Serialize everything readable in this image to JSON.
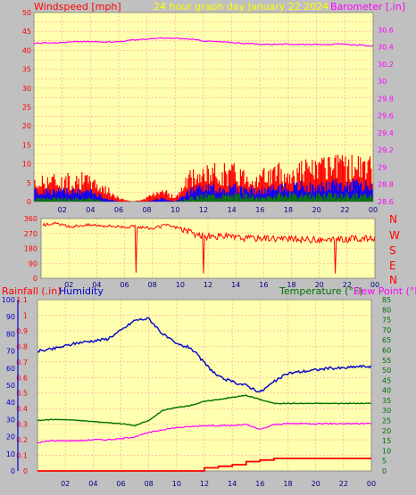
{
  "colors": {
    "background": "#c0c0c0",
    "plot_bg": "#ffffb0",
    "grid": "#ff9a9a",
    "wind_speed": "#ff0000",
    "wind_avg": "#0000ff",
    "wind_min": "#008000",
    "barometer": "#ff00ff",
    "title": "#ffff00",
    "direction": "#ff0000",
    "rainfall": "#ff0000",
    "humidity": "#0000cc",
    "temperature": "#007000",
    "dew_point": "#ff00ff"
  },
  "header": {
    "wind_label": "Windspeed [mph]",
    "title": "24 hour graph day   January 22 2024",
    "baro_label": "Barometer [.in]"
  },
  "bottom_header": {
    "rain_label": "Rainfall (.in)",
    "humidity_label": "Humidity",
    "temp_label": "Temperature (°F)",
    "dew_label": "Dew Point (°F)"
  },
  "x_ticks": [
    "02",
    "04",
    "06",
    "08",
    "10",
    "12",
    "14",
    "16",
    "18",
    "20",
    "22",
    "00"
  ],
  "compass": [
    "N",
    "W",
    "S",
    "E",
    "N"
  ],
  "chart_data": [
    {
      "type": "area",
      "title": "24 hour graph day   January 22 2024",
      "ylabel": "Windspeed [mph]",
      "y2label": "Barometer [.in]",
      "ylim": [
        0,
        50
      ],
      "y2lim": [
        28.6,
        30.8
      ],
      "yticks": [
        "0",
        "5",
        "10",
        "15",
        "20",
        "25",
        "30",
        "35",
        "40",
        "45",
        "50"
      ],
      "y2ticks": [
        "28.6",
        "28.8",
        "29",
        "29.2",
        "29.4",
        "29.6",
        "29.8",
        "30",
        "30.2",
        "30.4",
        "30.6"
      ],
      "xlim": [
        0,
        24
      ],
      "x_hours": [
        0,
        1,
        2,
        3,
        4,
        5,
        6,
        7,
        8,
        9,
        10,
        11,
        12,
        13,
        14,
        15,
        16,
        17,
        18,
        19,
        20,
        21,
        22,
        23,
        24
      ],
      "series": [
        {
          "name": "Windspeed gust",
          "values": [
            5,
            7,
            6,
            7,
            6,
            4,
            1,
            0,
            1,
            4,
            1,
            7,
            8,
            9,
            9,
            8,
            7,
            9,
            8,
            10,
            10,
            10,
            11,
            11,
            10
          ]
        },
        {
          "name": "Windspeed average",
          "values": [
            3,
            3,
            3,
            3,
            3,
            1,
            0,
            0,
            0,
            1,
            0,
            3,
            4,
            4,
            4,
            4,
            3,
            4,
            4,
            5,
            4,
            5,
            5,
            5,
            5
          ]
        },
        {
          "name": "Windspeed low",
          "values": [
            1,
            1,
            1,
            1,
            1,
            0,
            0,
            0,
            0,
            0,
            0,
            1,
            2,
            2,
            2,
            2,
            1,
            2,
            2,
            2,
            2,
            2,
            2,
            2,
            2
          ]
        },
        {
          "name": "Barometer",
          "values": [
            30.44,
            30.45,
            30.45,
            30.46,
            30.46,
            30.46,
            30.46,
            30.48,
            30.49,
            30.5,
            30.5,
            30.49,
            30.47,
            30.46,
            30.45,
            30.44,
            30.43,
            30.43,
            30.43,
            30.43,
            30.43,
            30.43,
            30.43,
            30.42,
            30.41
          ]
        }
      ]
    },
    {
      "type": "line",
      "title": "",
      "ylim": [
        0,
        360
      ],
      "yticks": [
        "0",
        "90",
        "180",
        "270",
        "360"
      ],
      "xlim": [
        0,
        24
      ],
      "x_hours": [
        0,
        1,
        2,
        3,
        4,
        5,
        6,
        7,
        8,
        9,
        10,
        11,
        12,
        13,
        14,
        15,
        16,
        17,
        18,
        19,
        20,
        21,
        22,
        23,
        24
      ],
      "series": [
        {
          "name": "Wind direction",
          "values": [
            320,
            330,
            310,
            320,
            320,
            315,
            310,
            310,
            300,
            320,
            300,
            265,
            250,
            255,
            245,
            240,
            245,
            240,
            235,
            235,
            230,
            230,
            235,
            240,
            240
          ]
        }
      ]
    },
    {
      "type": "line",
      "title": "",
      "ylabel": "Rainfall (.in)",
      "y2label": "Temperature (°F)",
      "ylim": [
        0,
        1.1
      ],
      "y2lim": [
        0,
        85
      ],
      "humidity_lim": [
        0,
        100
      ],
      "yticks": [
        "0",
        "0.1",
        "0.2",
        "0.3",
        "0.4",
        "0.5",
        "0.6",
        "0.7",
        "0.8",
        "0.9",
        "1",
        "1.1"
      ],
      "y2ticks": [
        "0",
        "5",
        "10",
        "15",
        "20",
        "25",
        "30",
        "35",
        "40",
        "45",
        "50",
        "55",
        "60",
        "65",
        "70",
        "75",
        "80",
        "85"
      ],
      "humidity_ticks": [
        "0",
        "10",
        "20",
        "30",
        "40",
        "50",
        "60",
        "70",
        "80",
        "90",
        "100"
      ],
      "xlim": [
        0,
        24
      ],
      "x_hours": [
        0,
        1,
        2,
        3,
        4,
        5,
        6,
        7,
        8,
        9,
        10,
        11,
        12,
        13,
        14,
        15,
        16,
        17,
        18,
        19,
        20,
        21,
        22,
        23,
        24
      ],
      "series": [
        {
          "name": "Humidity",
          "values": [
            70,
            71,
            73,
            75,
            76,
            77,
            82,
            88,
            89,
            80,
            74,
            72,
            63,
            55,
            52,
            50,
            46,
            52,
            57,
            58,
            59,
            60,
            60,
            61,
            61
          ]
        },
        {
          "name": "Temperature",
          "values": [
            25,
            25.5,
            25.5,
            25,
            24.5,
            24,
            23.5,
            22.5,
            25,
            30,
            31.5,
            32.5,
            34.5,
            35.5,
            36.5,
            37.5,
            35.5,
            33.5,
            33.5,
            33.5,
            33.5,
            33.5,
            33.5,
            33.5,
            33.5
          ]
        },
        {
          "name": "Dew Point",
          "values": [
            14,
            15,
            15,
            15,
            15.5,
            15.5,
            16,
            17,
            19,
            20.5,
            21.5,
            22,
            22.5,
            22.5,
            22.5,
            23,
            20.5,
            23,
            23.5,
            23.5,
            23.5,
            23.5,
            23.5,
            23.5,
            23.5
          ]
        },
        {
          "name": "Rainfall",
          "values": [
            0,
            0,
            0,
            0,
            0,
            0,
            0,
            0,
            0,
            0,
            0,
            0,
            0.02,
            0.03,
            0.04,
            0.06,
            0.07,
            0.08,
            0.08,
            0.08,
            0.08,
            0.08,
            0.08,
            0.08,
            0.08
          ]
        }
      ]
    }
  ]
}
